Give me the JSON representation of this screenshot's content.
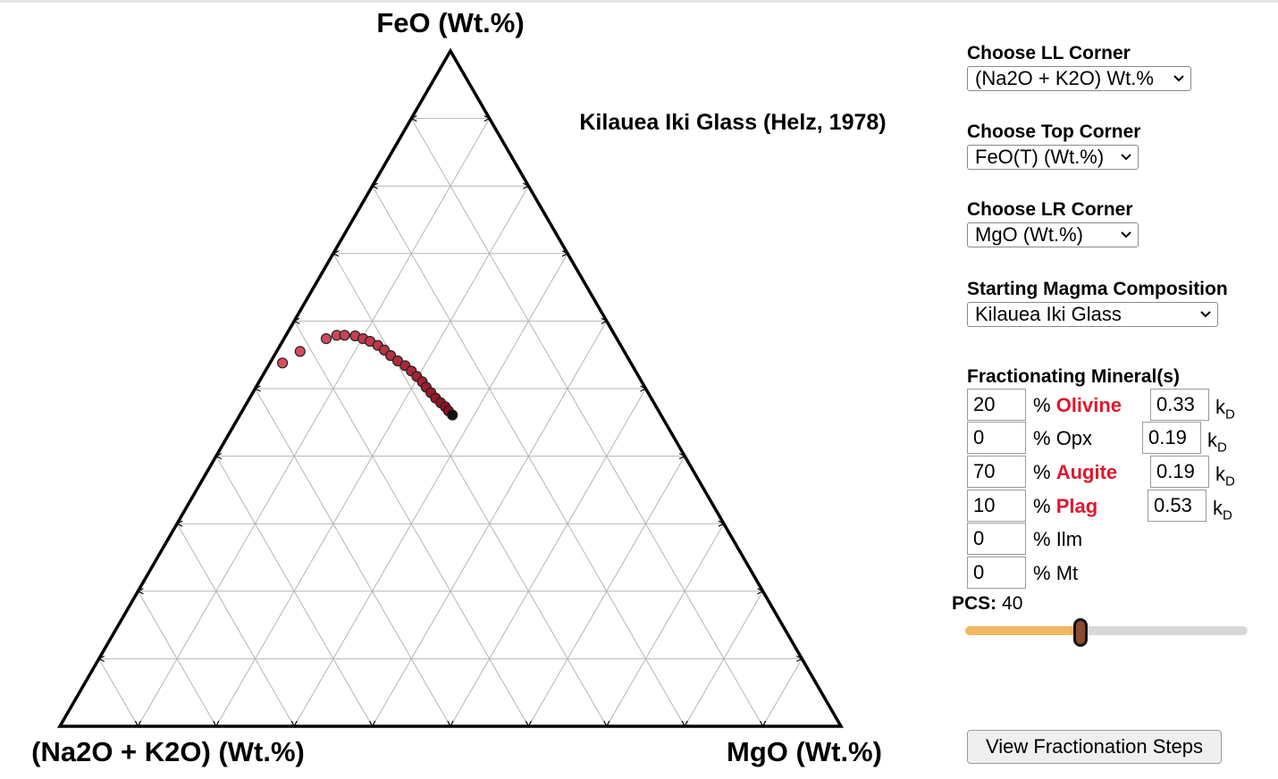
{
  "plot": {
    "top_label": "FeO (Wt.%)",
    "ll_label": "(Na2O + K2O) (Wt.%)",
    "lr_label": "MgO (Wt.%)",
    "title": "Kilauea Iki Glass (Helz, 1978)"
  },
  "chart_data": {
    "type": "scatter",
    "system": "ternary",
    "corners": {
      "top": "FeO (Wt.%)",
      "lower_left": "(Na2O + K2O) (Wt.%)",
      "lower_right": "MgO (Wt.%)"
    },
    "grid": true,
    "grid_divisions": 10,
    "points": [
      {
        "top": 0.538,
        "ll": 0.446,
        "lr": 0.016
      },
      {
        "top": 0.555,
        "ll": 0.415,
        "lr": 0.03
      },
      {
        "top": 0.574,
        "ll": 0.372,
        "lr": 0.054
      },
      {
        "top": 0.579,
        "ll": 0.356,
        "lr": 0.065
      },
      {
        "top": 0.579,
        "ll": 0.346,
        "lr": 0.075
      },
      {
        "top": 0.578,
        "ll": 0.333,
        "lr": 0.089
      },
      {
        "top": 0.574,
        "ll": 0.325,
        "lr": 0.101
      },
      {
        "top": 0.57,
        "ll": 0.318,
        "lr": 0.112
      },
      {
        "top": 0.564,
        "ll": 0.311,
        "lr": 0.125
      },
      {
        "top": 0.557,
        "ll": 0.306,
        "lr": 0.137
      },
      {
        "top": 0.549,
        "ll": 0.302,
        "lr": 0.149
      },
      {
        "top": 0.541,
        "ll": 0.297,
        "lr": 0.162
      },
      {
        "top": 0.534,
        "ll": 0.291,
        "lr": 0.175
      },
      {
        "top": 0.526,
        "ll": 0.287,
        "lr": 0.187
      },
      {
        "top": 0.518,
        "ll": 0.284,
        "lr": 0.198
      },
      {
        "top": 0.51,
        "ll": 0.281,
        "lr": 0.209
      },
      {
        "top": 0.502,
        "ll": 0.28,
        "lr": 0.218
      },
      {
        "top": 0.494,
        "ll": 0.278,
        "lr": 0.228
      },
      {
        "top": 0.486,
        "ll": 0.276,
        "lr": 0.238
      },
      {
        "top": 0.479,
        "ll": 0.273,
        "lr": 0.248
      },
      {
        "top": 0.473,
        "ll": 0.27,
        "lr": 0.257
      },
      {
        "top": 0.467,
        "ll": 0.269,
        "lr": 0.264
      },
      {
        "top": 0.461,
        "ll": 0.267,
        "lr": 0.272
      }
    ],
    "start_color": "#d9505f",
    "end_color": "#8a0e1f",
    "last_point_color": "#111111"
  },
  "controls": {
    "ll_corner": {
      "label": "Choose LL Corner",
      "value": "(Na2O + K2O) Wt.%"
    },
    "top_corner": {
      "label": "Choose Top Corner",
      "value": "FeO(T) (Wt.%)"
    },
    "lr_corner": {
      "label": "Choose LR Corner",
      "value": "MgO (Wt.%)"
    },
    "magma": {
      "label": "Starting Magma Composition",
      "value": "Kilauea Iki Glass"
    }
  },
  "fractionating": {
    "label": "Fractionating Mineral(s)",
    "percent_sign": "%",
    "kd_main": "k",
    "kd_sub": "D",
    "minerals": [
      {
        "name": "Olivine",
        "percent": "20",
        "kd": "0.33",
        "active": true
      },
      {
        "name": "Opx",
        "percent": "0",
        "kd": "0.19",
        "active": false
      },
      {
        "name": "Augite",
        "percent": "70",
        "kd": "0.19",
        "active": true
      },
      {
        "name": "Plag",
        "percent": "10",
        "kd": "0.53",
        "active": true
      },
      {
        "name": "Ilm",
        "percent": "0",
        "active": false
      },
      {
        "name": "Mt",
        "percent": "0",
        "active": false
      }
    ]
  },
  "pcs": {
    "label": "PCS:",
    "value": "40",
    "slider_fraction": 0.41
  },
  "button": {
    "label": "View Fractionation Steps"
  },
  "colors": {
    "highlight": "#e0182d",
    "slider_fill": "#f0b860",
    "slider_track": "#d8d8d8",
    "thumb": "#8a4a2c"
  }
}
